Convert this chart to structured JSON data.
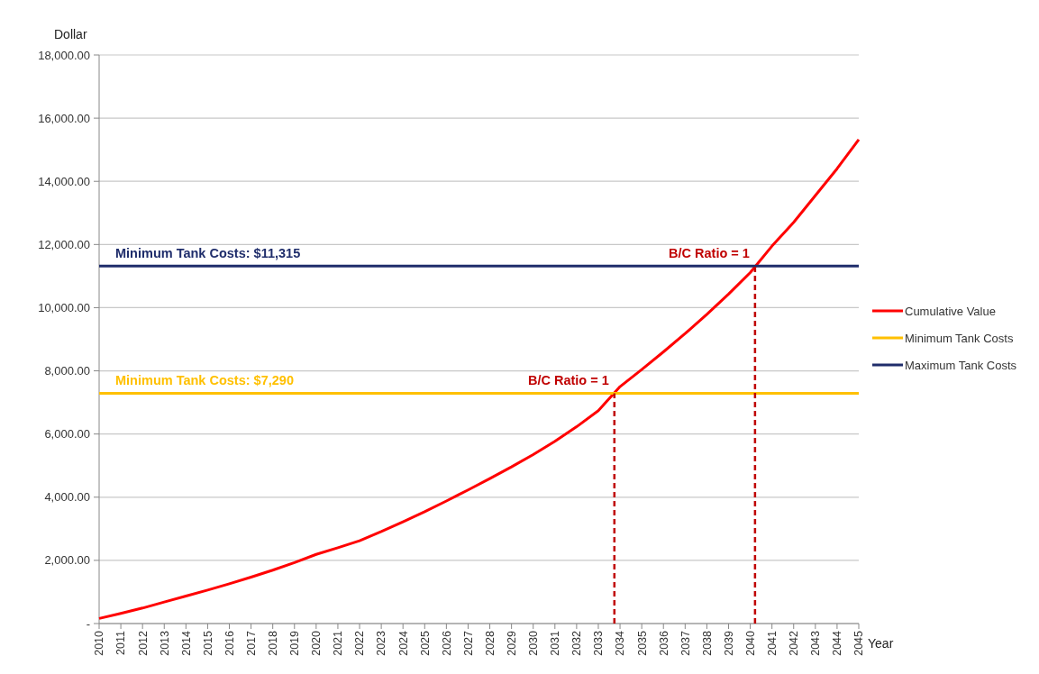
{
  "chart_data": {
    "type": "line",
    "xlabel": "Year",
    "ylabel": "Dollar",
    "x": [
      2010,
      2011,
      2012,
      2013,
      2014,
      2015,
      2016,
      2017,
      2018,
      2019,
      2020,
      2021,
      2022,
      2023,
      2024,
      2025,
      2026,
      2027,
      2028,
      2029,
      2030,
      2031,
      2032,
      2033,
      2034,
      2035,
      2036,
      2037,
      2038,
      2039,
      2040,
      2041,
      2042,
      2043,
      2044,
      2045
    ],
    "series": [
      {
        "name": "Cumulative Value",
        "color": "#ff0000",
        "values": [
          160,
          320,
          490,
          680,
          870,
          1060,
          1260,
          1470,
          1690,
          1930,
          2190,
          2400,
          2620,
          2910,
          3220,
          3540,
          3880,
          4230,
          4590,
          4960,
          5350,
          5770,
          6230,
          6740,
          7500,
          8040,
          8600,
          9180,
          9790,
          10430,
          11110,
          11950,
          12700,
          13550,
          14400,
          15320
        ]
      },
      {
        "name": "Minimum Tank Costs",
        "color": "#ffc000",
        "x": [
          2010,
          2045
        ],
        "values": [
          7290,
          7290
        ]
      },
      {
        "name": "Maximum Tank Costs",
        "color": "#1f2d6b",
        "x": [
          2010,
          2045
        ],
        "values": [
          11315,
          11315
        ]
      },
      {
        "color": "#c00000",
        "x": [
          2033.74,
          2033.74
        ],
        "values": [
          0,
          7290
        ],
        "line_style": "dashed"
      },
      {
        "color": "#c00000",
        "x": [
          2040.22,
          2040.22
        ],
        "values": [
          0,
          11315
        ],
        "line_style": "dashed"
      }
    ],
    "xlim": [
      2010,
      2045
    ],
    "xticks": [
      2010,
      2011,
      2012,
      2013,
      2014,
      2015,
      2016,
      2017,
      2018,
      2019,
      2020,
      2021,
      2022,
      2023,
      2024,
      2025,
      2026,
      2027,
      2028,
      2029,
      2030,
      2031,
      2032,
      2033,
      2034,
      2035,
      2036,
      2037,
      2038,
      2039,
      2040,
      2041,
      2042,
      2043,
      2044,
      2045
    ],
    "ylim": [
      0,
      18000
    ],
    "yticks": [
      {
        "value": 0,
        "label": "-"
      },
      {
        "value": 2000,
        "label": "2,000.00"
      },
      {
        "value": 4000,
        "label": "4,000.00"
      },
      {
        "value": 6000,
        "label": "6,000.00"
      },
      {
        "value": 8000,
        "label": "8,000.00"
      },
      {
        "value": 10000,
        "label": "10,000.00"
      },
      {
        "value": 12000,
        "label": "12,000.00"
      },
      {
        "value": 14000,
        "label": "14,000.00"
      },
      {
        "value": 16000,
        "label": "16,000.00"
      },
      {
        "value": 18000,
        "label": "18,000.00"
      }
    ],
    "annotations": [
      {
        "text": "Minimum Tank Costs: $11,315",
        "x": 2010,
        "y": 11315
      },
      {
        "text": "Minimum Tank Costs: $7,290",
        "x": 2010,
        "y": 7290
      },
      {
        "text": "B/C Ratio = 1",
        "x": 2033.74,
        "y": 7290
      },
      {
        "text": "B/C Ratio = 1",
        "x": 2040.22,
        "y": 11315
      }
    ],
    "grid": "y",
    "legend": "right",
    "line_style": "solid",
    "marker": "none"
  }
}
